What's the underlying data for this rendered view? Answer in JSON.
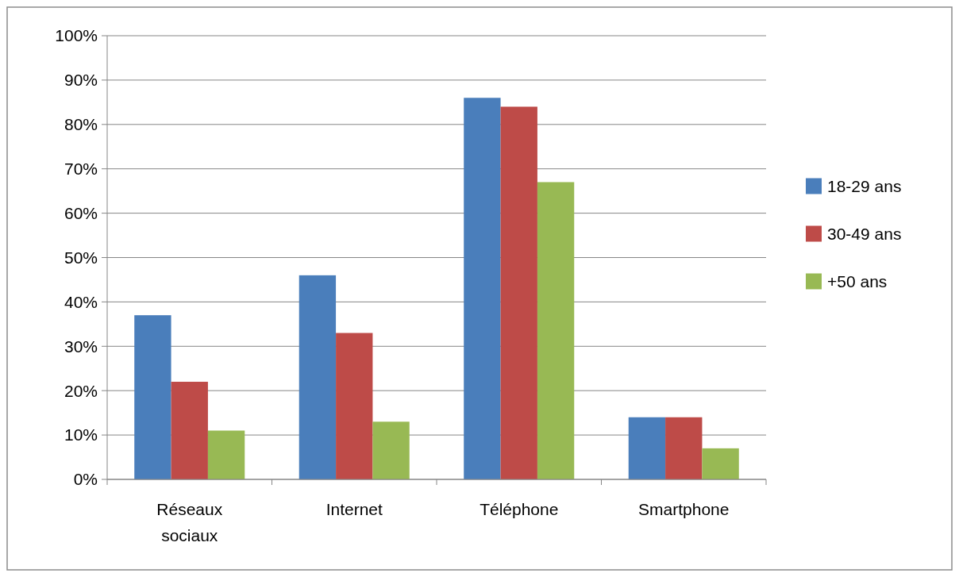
{
  "chart_data": {
    "type": "bar",
    "categories": [
      "Réseaux sociaux",
      "Internet",
      "Téléphone",
      "Smartphone"
    ],
    "series": [
      {
        "name": "18-29 ans",
        "color": "#4a7ebb",
        "values": [
          37,
          46,
          86,
          14
        ]
      },
      {
        "name": "30-49 ans",
        "color": "#be4b48",
        "values": [
          22,
          33,
          84,
          14
        ]
      },
      {
        "name": "+50 ans",
        "color": "#98b954",
        "values": [
          11,
          13,
          67,
          7
        ]
      }
    ],
    "ylim": [
      0,
      100
    ],
    "yticks": [
      {
        "value": 0,
        "label": "0%"
      },
      {
        "value": 10,
        "label": "10%"
      },
      {
        "value": 20,
        "label": "20%"
      },
      {
        "value": 30,
        "label": "30%"
      },
      {
        "value": 40,
        "label": "40%"
      },
      {
        "value": 50,
        "label": "50%"
      },
      {
        "value": 60,
        "label": "60%"
      },
      {
        "value": 70,
        "label": "70%"
      },
      {
        "value": 80,
        "label": "80%"
      },
      {
        "value": 90,
        "label": "90%"
      },
      {
        "value": 100,
        "label": "100%"
      }
    ],
    "grid": "y",
    "legend": "right"
  }
}
